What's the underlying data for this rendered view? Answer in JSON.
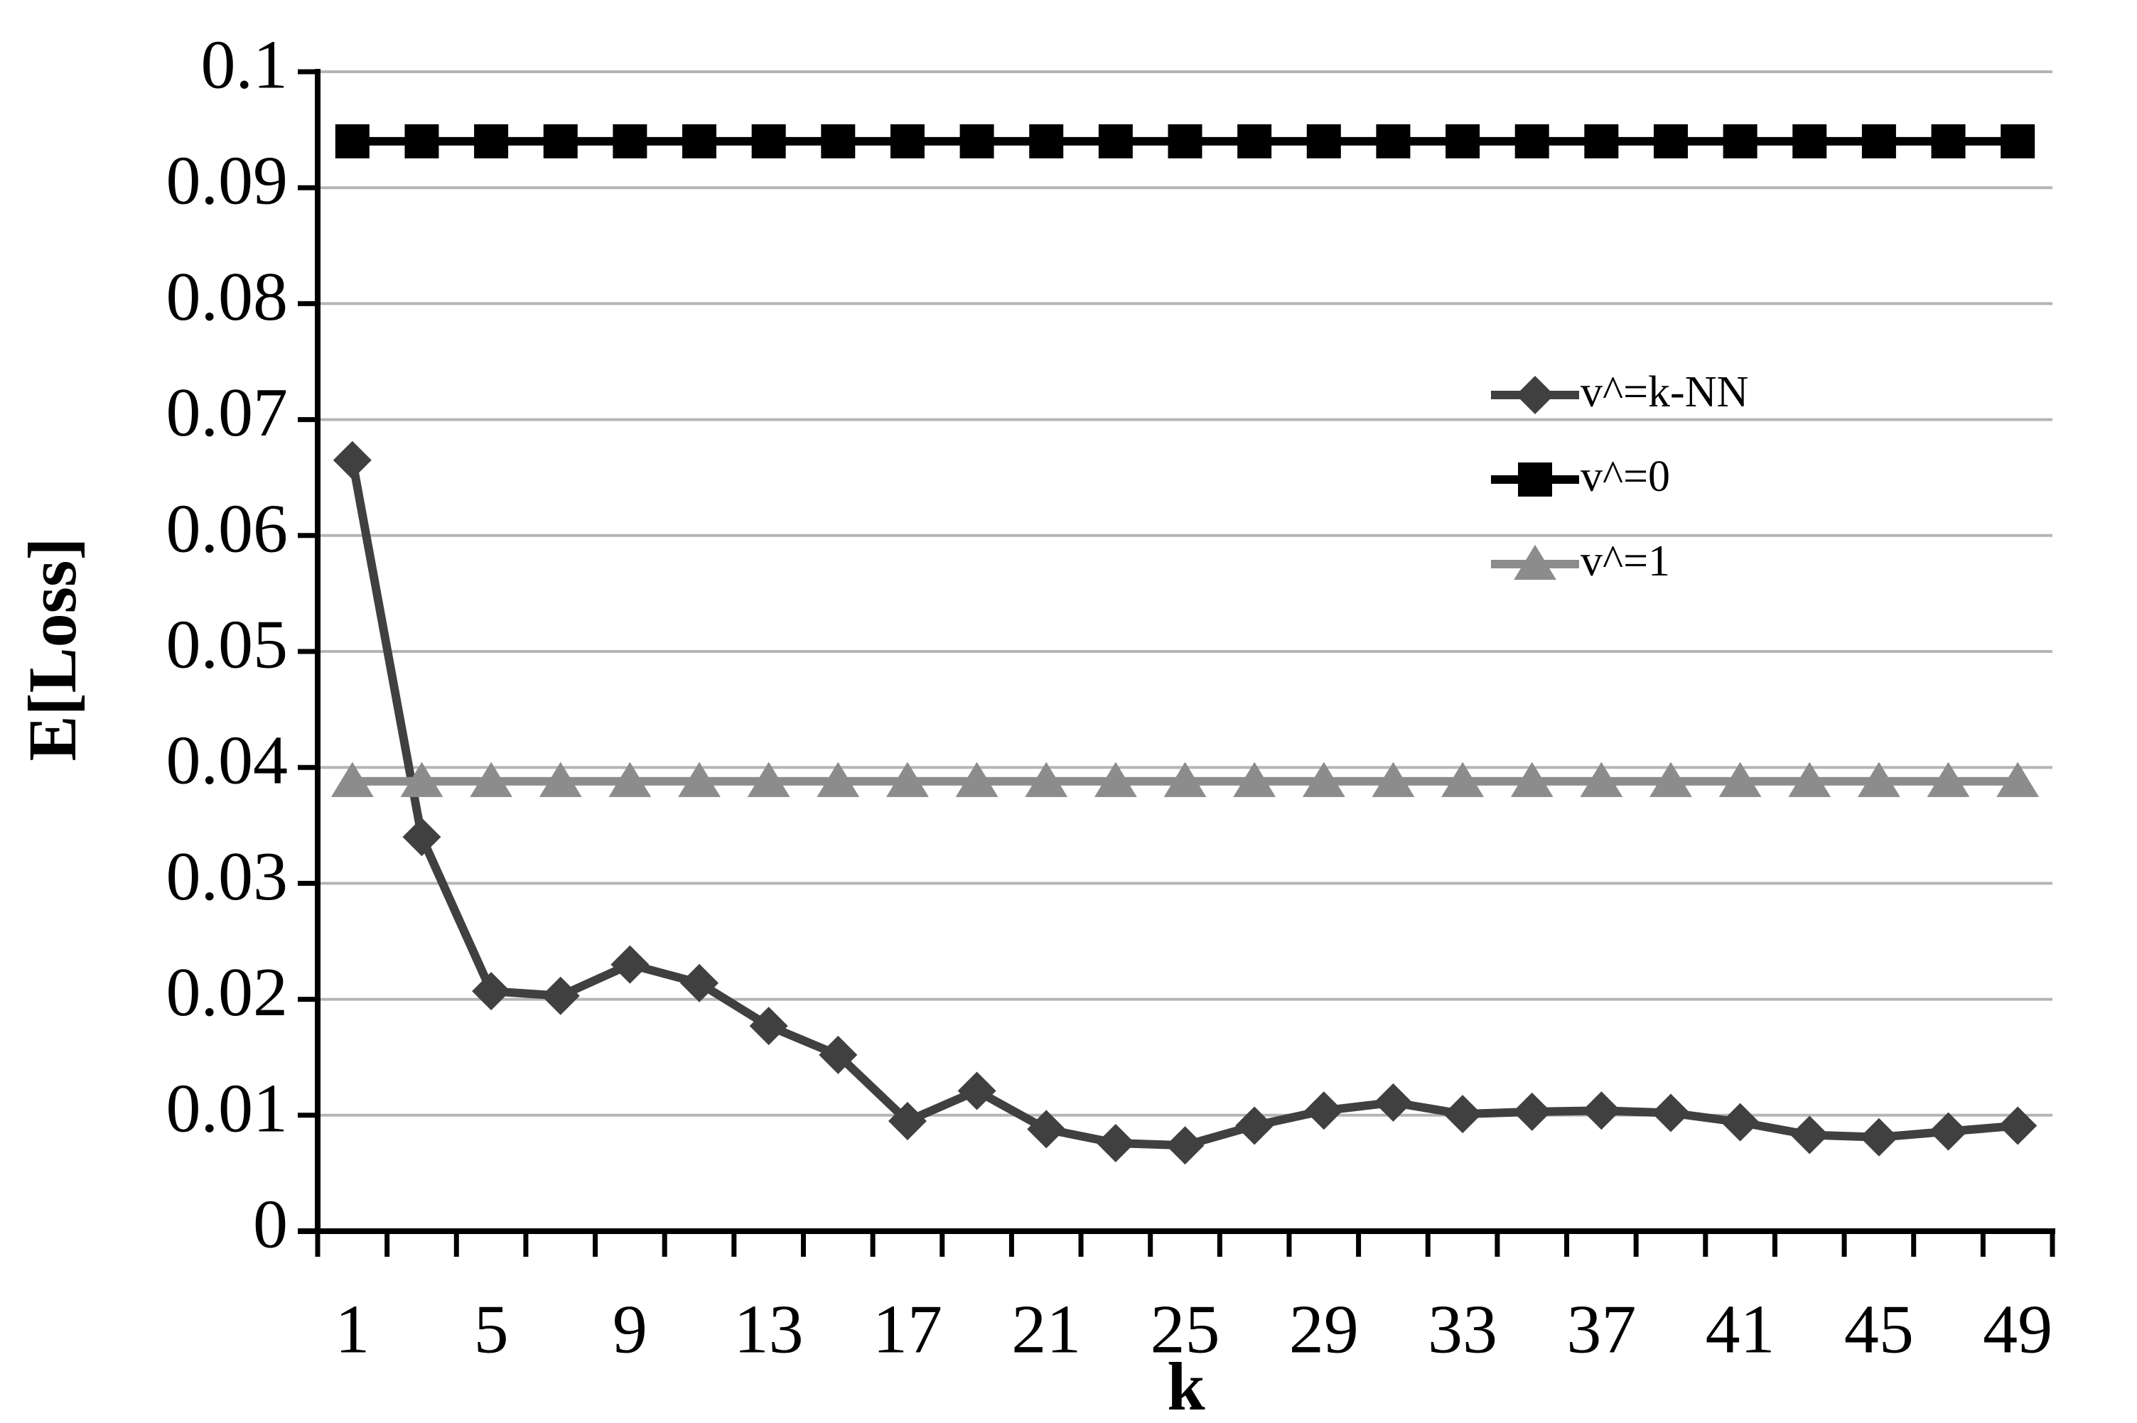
{
  "chart_data": {
    "type": "line",
    "x_label": "k",
    "y_label": "E[Loss]",
    "categories": [
      1,
      null,
      5,
      null,
      9,
      null,
      13,
      null,
      17,
      null,
      21,
      null,
      25,
      null,
      29,
      null,
      33,
      null,
      37,
      null,
      41,
      null,
      45,
      null,
      49
    ],
    "series": [
      {
        "name": "v^=k-NN",
        "color": "#404040",
        "marker": "diamond",
        "values": [
          0.0665,
          0.034,
          0.0207,
          0.0203,
          0.023,
          0.0214,
          0.0177,
          0.0152,
          0.0095,
          0.0121,
          0.0088,
          0.0076,
          0.0074,
          0.0091,
          0.0104,
          0.0111,
          0.0101,
          0.0103,
          0.0104,
          0.0102,
          0.0094,
          0.0083,
          0.0081,
          0.0086,
          0.0091
        ]
      },
      {
        "name": "v^=0",
        "color": "#000000",
        "marker": "square",
        "values": [
          0.094,
          0.094,
          0.094,
          0.094,
          0.094,
          0.094,
          0.094,
          0.094,
          0.094,
          0.094,
          0.094,
          0.094,
          0.094,
          0.094,
          0.094,
          0.094,
          0.094,
          0.094,
          0.094,
          0.094,
          0.094,
          0.094,
          0.094,
          0.094,
          0.094
        ]
      },
      {
        "name": "v^=1",
        "color": "#8c8c8c",
        "marker": "triangle",
        "values": [
          0.0388,
          0.0388,
          0.0388,
          0.0388,
          0.0388,
          0.0388,
          0.0388,
          0.0388,
          0.0388,
          0.0388,
          0.0388,
          0.0388,
          0.0388,
          0.0388,
          0.0388,
          0.0388,
          0.0388,
          0.0388,
          0.0388,
          0.0388,
          0.0388,
          0.0388,
          0.0388,
          0.0388,
          0.0388
        ]
      }
    ],
    "ylim": [
      0,
      0.1
    ],
    "yticks": [
      0,
      0.01,
      0.02,
      0.03,
      0.04,
      0.05,
      0.06,
      0.07,
      0.08,
      0.09,
      0.1
    ],
    "grid": true,
    "legend_position": "right"
  }
}
